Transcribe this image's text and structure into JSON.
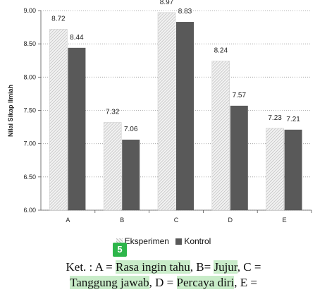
{
  "chart_data": {
    "type": "bar",
    "categories": [
      "A",
      "B",
      "C",
      "D",
      "E"
    ],
    "series": [
      {
        "name": "Eksperimen",
        "values": [
          8.72,
          7.32,
          8.97,
          8.24,
          7.23
        ]
      },
      {
        "name": "Kontrol",
        "values": [
          8.44,
          7.06,
          8.83,
          7.57,
          7.21
        ]
      }
    ],
    "ylabel": "Nilai Sikap Ilmiah",
    "ylim": [
      6.0,
      9.0
    ],
    "yticks": [
      "6.00",
      "6.50",
      "7.00",
      "7.50",
      "8.00",
      "8.50",
      "9.00"
    ],
    "grid": true,
    "legend_position": "bottom",
    "colors": {
      "Eksperimen": "#d9d9d9",
      "Kontrol": "#595959"
    }
  },
  "badge": "5",
  "caption": {
    "p1": "Ket. : A = ",
    "a": "Rasa ingin tahu",
    "p2": ", B= ",
    "b": "Jujur",
    "p3": ", C =",
    "c": "Tanggung jawab",
    "p4": ", D = ",
    "d": "Percaya diri",
    "p5": ", E ="
  }
}
